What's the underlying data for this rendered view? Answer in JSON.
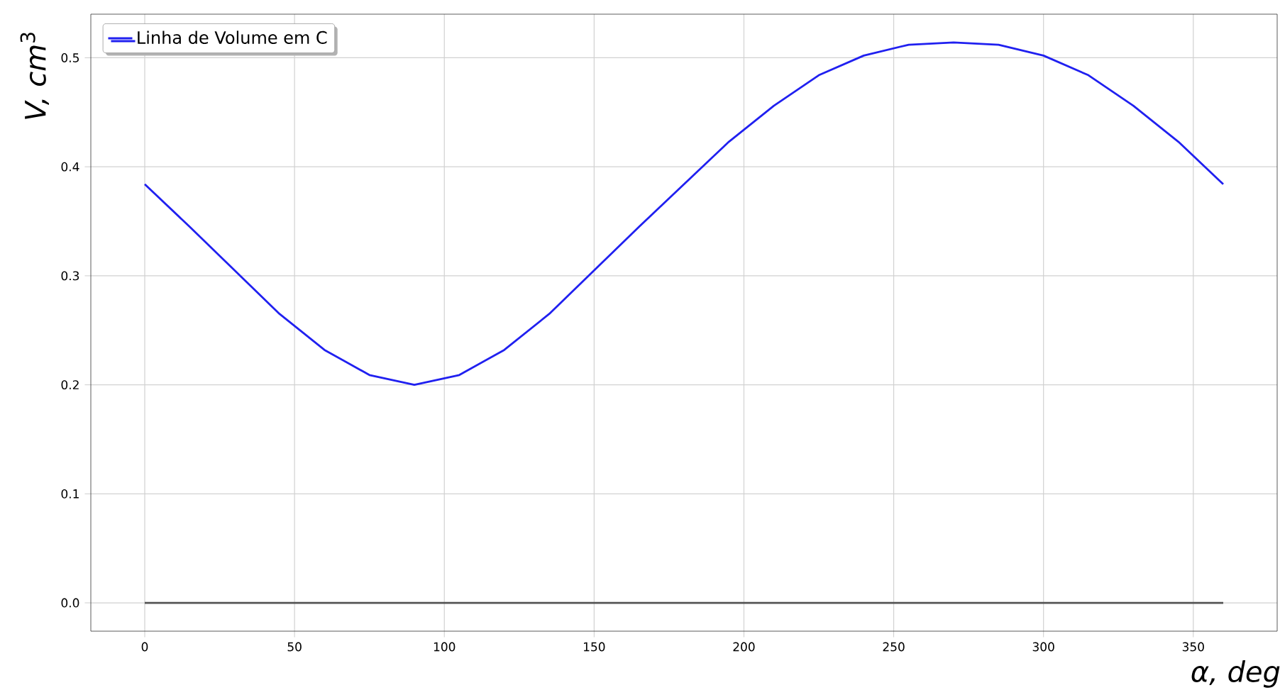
{
  "chart_data": {
    "type": "line",
    "xlabel": "*α, deg*",
    "ylabel": "*V, cm*$^{3}$",
    "series": [
      {
        "name": "Linha de Volume em C",
        "color": "#2020f0",
        "x": [
          0,
          15,
          30,
          45,
          60,
          75,
          90,
          105,
          120,
          135,
          150,
          165,
          180,
          195,
          210,
          225,
          240,
          255,
          270,
          285,
          300,
          315,
          330,
          345,
          360
        ],
        "values": [
          0.384,
          0.345,
          0.305,
          0.265,
          0.232,
          0.209,
          0.2,
          0.209,
          0.232,
          0.265,
          0.305,
          0.345,
          0.384,
          0.423,
          0.456,
          0.484,
          0.502,
          0.512,
          0.514,
          0.512,
          0.502,
          0.484,
          0.456,
          0.423,
          0.384
        ]
      },
      {
        "color": "#555555",
        "x": [
          0,
          360
        ],
        "values": [
          0,
          0
        ]
      }
    ],
    "xlim": [
      -18,
      378
    ],
    "ylim": [
      -0.026,
      0.54
    ],
    "xticks": [
      0,
      50,
      100,
      150,
      200,
      250,
      300,
      350
    ],
    "yticks": [
      {
        "value": 0,
        "label": "0.0"
      },
      {
        "value": 0.1,
        "label": "0.1"
      },
      {
        "value": 0.2,
        "label": "0.2"
      },
      {
        "value": 0.3,
        "label": "0.3"
      },
      {
        "value": 0.4,
        "label": "0.4"
      },
      {
        "value": 0.5,
        "label": "0.5"
      }
    ],
    "grid": true,
    "legend": "top left",
    "marker": "none",
    "line_style": "solid"
  }
}
